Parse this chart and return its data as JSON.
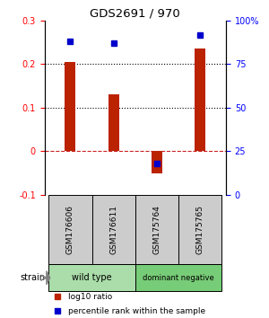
{
  "title": "GDS2691 / 970",
  "samples": [
    "GSM176606",
    "GSM176611",
    "GSM175764",
    "GSM175765"
  ],
  "log10_ratio": [
    0.205,
    0.13,
    -0.052,
    0.235
  ],
  "percentile": [
    88,
    87,
    18,
    92
  ],
  "bar_color": "#bb2200",
  "dot_color": "#0000cc",
  "ylim_left": [
    -0.1,
    0.3
  ],
  "ylim_right": [
    0,
    100
  ],
  "yticks_left": [
    -0.1,
    0.0,
    0.1,
    0.2,
    0.3
  ],
  "yticks_right": [
    0,
    25,
    50,
    75,
    100
  ],
  "ytick_labels_left": [
    "-0.1",
    "0",
    "0.1",
    "0.2",
    "0.3"
  ],
  "ytick_labels_right": [
    "0",
    "25",
    "50",
    "75",
    "100%"
  ],
  "hlines_dotted": [
    0.1,
    0.2
  ],
  "hline_dashed": 0.0,
  "groups": [
    {
      "label": "wild type",
      "indices": [
        0,
        1
      ],
      "color": "#aaddaa"
    },
    {
      "label": "dominant negative",
      "indices": [
        2,
        3
      ],
      "color": "#77cc77"
    }
  ],
  "label_area_color": "#cccccc",
  "strain_label": "strain",
  "bar_width": 0.25,
  "legend_items": [
    {
      "color": "#bb2200",
      "label": "log10 ratio"
    },
    {
      "color": "#0000cc",
      "label": "percentile rank within the sample"
    }
  ]
}
